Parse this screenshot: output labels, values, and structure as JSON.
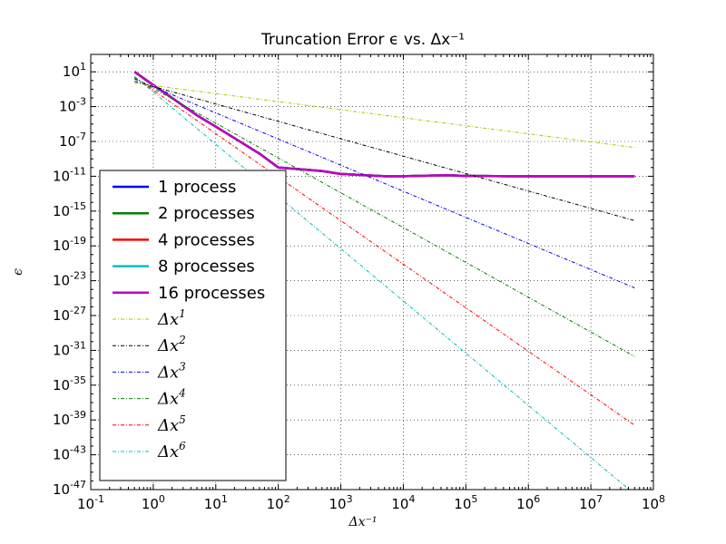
{
  "chart_data": {
    "type": "line",
    "title": "Truncation Error ϵ vs. Δx⁻¹",
    "xlabel": "Δx⁻¹",
    "ylabel": "ϵ",
    "xscale": "log",
    "yscale": "log",
    "xlim": [
      0.1,
      100000000
    ],
    "ylim": [
      1e-47,
      1000.0
    ],
    "grid": true,
    "legend_position": "left",
    "x_tick_labels": [
      "10-1",
      "100",
      "101",
      "102",
      "103",
      "104",
      "105",
      "106",
      "107",
      "108"
    ],
    "y_tick_labels": [
      "101",
      "10-3",
      "10-7",
      "10-11",
      "10-15",
      "10-19",
      "10-23",
      "10-27",
      "10-31",
      "10-35",
      "10-39",
      "10-43",
      "10-47"
    ],
    "series": [
      {
        "name": "1 process",
        "color": "#0000ff",
        "style": "solid",
        "x": [
          0.5,
          1,
          2,
          5,
          10,
          50,
          100,
          500,
          1000,
          5000,
          10000,
          50000,
          100000,
          500000,
          1000000,
          5000000,
          10000000,
          50000000
        ],
        "y": [
          10,
          0.3,
          0.01,
          0.0001,
          5e-06,
          4e-09,
          1e-10,
          4e-11,
          1.8e-11,
          1e-11,
          1e-11,
          1.3e-11,
          1.1e-11,
          1e-11,
          1e-11,
          1e-11,
          1e-11,
          1e-11
        ]
      },
      {
        "name": "2 processes",
        "color": "#008000",
        "style": "solid",
        "x": [
          0.5,
          1,
          2,
          5,
          10,
          50,
          100,
          500,
          1000,
          5000,
          10000,
          50000,
          100000,
          500000,
          1000000,
          5000000,
          10000000,
          50000000
        ],
        "y": [
          10,
          0.3,
          0.01,
          0.0001,
          5e-06,
          4e-09,
          1e-10,
          4e-11,
          1.8e-11,
          1e-11,
          1e-11,
          1.3e-11,
          1.1e-11,
          1e-11,
          1e-11,
          1e-11,
          1e-11,
          1e-11
        ]
      },
      {
        "name": "4 processes",
        "color": "#ff0000",
        "style": "solid",
        "x": [
          0.5,
          1,
          2,
          5,
          10,
          50,
          100,
          500,
          1000,
          5000,
          10000,
          50000,
          100000,
          500000,
          1000000,
          5000000,
          10000000,
          50000000
        ],
        "y": [
          10,
          0.3,
          0.01,
          0.0001,
          5e-06,
          4e-09,
          1e-10,
          4e-11,
          1.8e-11,
          1e-11,
          1e-11,
          1.3e-11,
          1.1e-11,
          1e-11,
          1e-11,
          1e-11,
          1e-11,
          1e-11
        ]
      },
      {
        "name": "8 processes",
        "color": "#00bfbf",
        "style": "solid",
        "x": [
          0.5,
          1,
          2,
          5,
          10,
          50,
          100,
          500,
          1000,
          5000,
          10000,
          50000,
          100000,
          500000,
          1000000,
          5000000,
          10000000,
          50000000
        ],
        "y": [
          10,
          0.3,
          0.01,
          0.0001,
          5e-06,
          4e-09,
          1e-10,
          4e-11,
          1.8e-11,
          1e-11,
          1e-11,
          1.3e-11,
          1.1e-11,
          1e-11,
          1e-11,
          1e-11,
          1e-11,
          1e-11
        ]
      },
      {
        "name": "16 processes",
        "color": "#bf00bf",
        "style": "solid",
        "x": [
          0.5,
          1,
          2,
          5,
          10,
          50,
          100,
          500,
          1000,
          5000,
          10000,
          50000,
          100000,
          500000,
          1000000,
          5000000,
          10000000,
          50000000
        ],
        "y": [
          10,
          0.3,
          0.01,
          0.0001,
          5e-06,
          4e-09,
          1e-10,
          4e-11,
          1.8e-11,
          1e-11,
          1e-11,
          1.3e-11,
          1.1e-11,
          1e-11,
          1e-11,
          1e-11,
          1e-11,
          1e-11
        ]
      },
      {
        "name": "Δx1",
        "color": "#bfbf00",
        "style": "dashdot",
        "x": [
          0.5,
          50000000
        ],
        "y": [
          0.5,
          2e-08
        ]
      },
      {
        "name": "Δx2",
        "color": "#000000",
        "style": "dashdot",
        "x": [
          0.5,
          50000000
        ],
        "y": [
          0.8,
          8e-17
        ]
      },
      {
        "name": "Δx3",
        "color": "#0000ff",
        "style": "dashdot",
        "x": [
          0.5,
          50000000
        ],
        "y": [
          1.5,
          1.5e-24
        ]
      },
      {
        "name": "Δx4",
        "color": "#008000",
        "style": "dashdot",
        "x": [
          0.5,
          50000000
        ],
        "y": [
          2,
          2e-32
        ]
      },
      {
        "name": "Δx5",
        "color": "#ff0000",
        "style": "dashdot",
        "x": [
          0.5,
          50000000
        ],
        "y": [
          2.5,
          2.5e-40
        ]
      },
      {
        "name": "Δx6",
        "color": "#00bfbf",
        "style": "dashdot",
        "x": [
          0.5,
          50000000
        ],
        "y": [
          3,
          3e-48
        ]
      }
    ]
  }
}
